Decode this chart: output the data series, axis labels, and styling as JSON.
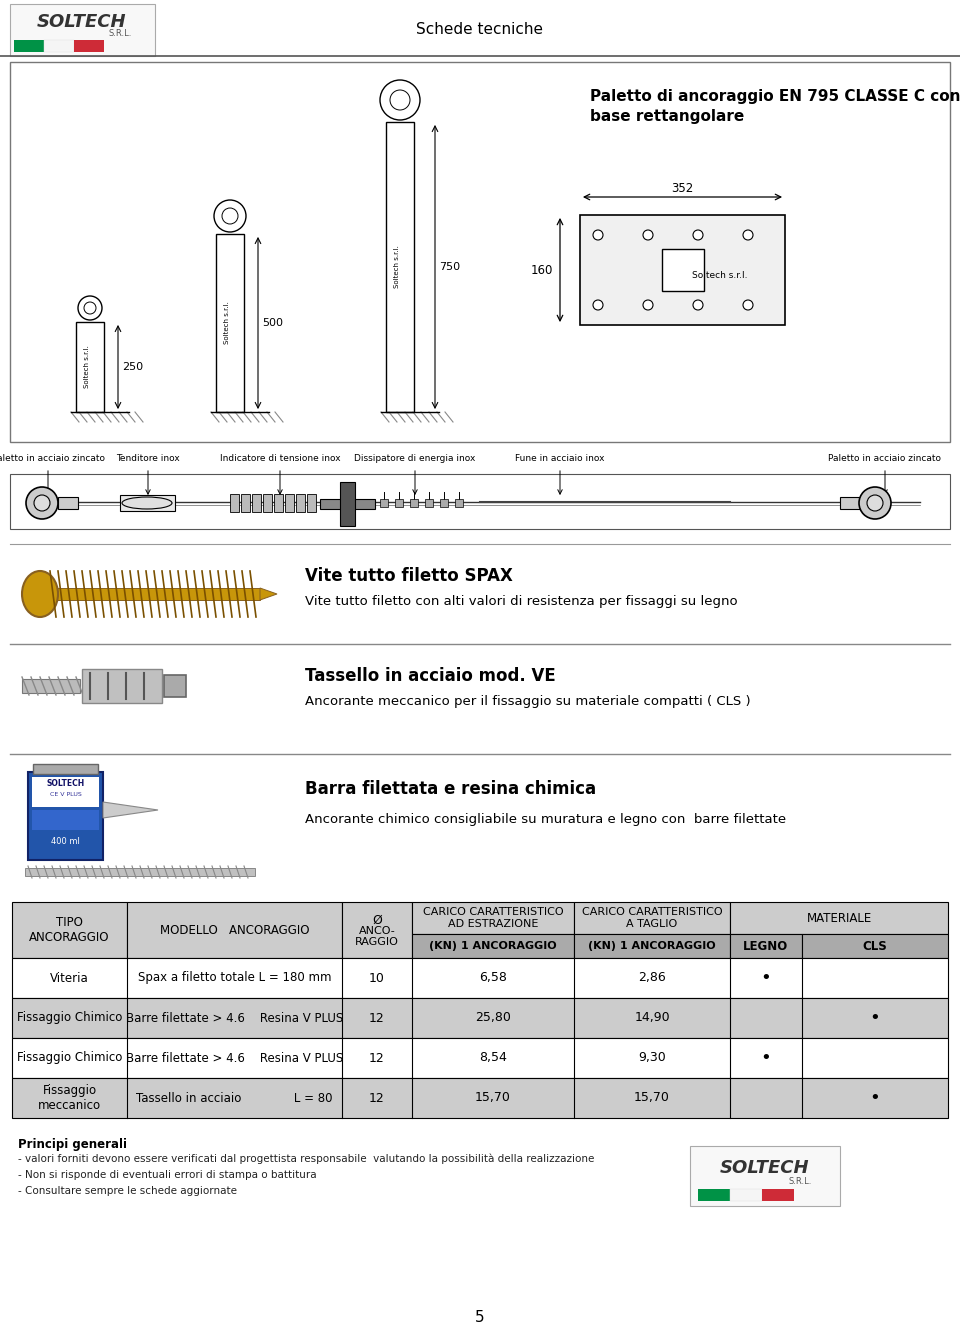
{
  "page_title": "Schede tecniche",
  "page_number": "5",
  "dim_250": "250",
  "dim_500": "500",
  "dim_750": "750",
  "dim_352": "352",
  "dim_160": "160",
  "labels_row": [
    "Paletto in acciaio zincato",
    "Tenditore inox",
    "Indicatore di tensione inox",
    "Dissipatore di energia inox",
    "Fune in acciaio inox",
    "",
    "Paletto in acciaio zincato"
  ],
  "section2_title_bold": "Vite tutto filetto SPAX",
  "section2_text": "Vite tutto filetto con alti valori di resistenza per fissaggi su legno",
  "section3_title_bold": "Tassello in acciaio mod. VE",
  "section3_text": "Ancorante meccanico per il fissaggio su materiale compatti ( CLS )",
  "section4_title_bold": "Barra filettata e resina chimica",
  "section4_text": "Ancorante chimico consigliabile su muratura e legno con  barre filettate",
  "table_rows": [
    [
      "Viteria",
      "Spax a filetto totale L = 180 mm",
      "10",
      "6,58",
      "2,86",
      "•",
      ""
    ],
    [
      "Fissaggio Chimico",
      "Barre filettate > 4.6    Resina V PLUS",
      "12",
      "25,80",
      "14,90",
      "",
      "•"
    ],
    [
      "Fissaggio Chimico",
      "Barre filettate > 4.6    Resina V PLUS",
      "12",
      "8,54",
      "9,30",
      "•",
      ""
    ],
    [
      "Fissaggio\nmeccanico",
      "Tassello in acciaio              L = 80",
      "12",
      "15,70",
      "15,70",
      "",
      "•"
    ]
  ],
  "row_bg_colors": [
    "#ffffff",
    "#cccccc",
    "#ffffff",
    "#cccccc"
  ],
  "header_bg": "#cccccc",
  "header_bg2": "#aaaaaa",
  "principi_title": "Principi generali",
  "principi_lines": [
    "- valori forniti devono essere verificati dal progettista responsabile  valutando la possibilità della realizzazione",
    "- Non si risponde di eventuali errori di stampa o battitura",
    "- Consultare sempre le schede aggiornate"
  ],
  "bg_color": "#ffffff"
}
